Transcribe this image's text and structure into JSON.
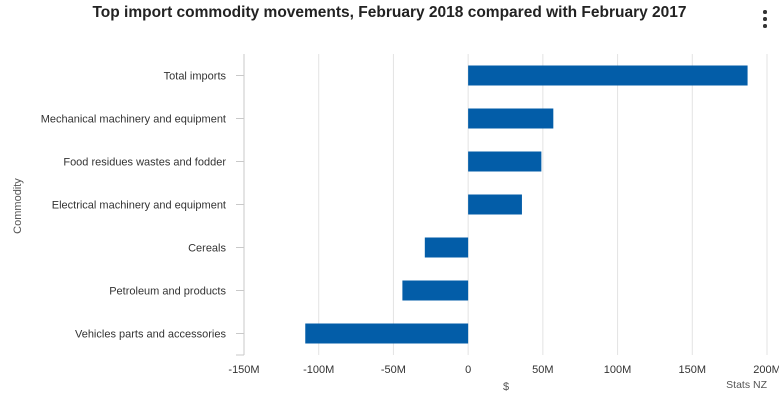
{
  "header": {
    "menu_icon": "kebab-menu-icon"
  },
  "colors": {
    "bar": "#035da8",
    "grid": "#e3e3e3",
    "axis": "#c9c9c9"
  },
  "chart_data": {
    "type": "bar",
    "orientation": "horizontal",
    "title": "Top import commodity movements, February 2018 compared with February 2017",
    "xlabel": "$",
    "ylabel": "Commodity",
    "credit": "Stats NZ",
    "categories": [
      "Total imports",
      "Mechanical machinery and equipment",
      "Food residues wastes and fodder",
      "Electrical machinery and equipment",
      "Cereals",
      "Petroleum and products",
      "Vehicles parts and accessories"
    ],
    "values": [
      187000000,
      57000000,
      49000000,
      36000000,
      -29000000,
      -44000000,
      -109000000
    ],
    "xlim": [
      -150000000,
      200000000
    ],
    "ticks": [
      {
        "value": -150000000,
        "label": "-150M"
      },
      {
        "value": -100000000,
        "label": "-100M"
      },
      {
        "value": -50000000,
        "label": "-50M"
      },
      {
        "value": 0,
        "label": "0"
      },
      {
        "value": 50000000,
        "label": "50M"
      },
      {
        "value": 100000000,
        "label": "100M"
      },
      {
        "value": 150000000,
        "label": "150M"
      },
      {
        "value": 200000000,
        "label": "200M"
      }
    ],
    "grid": true,
    "legend": "none"
  }
}
